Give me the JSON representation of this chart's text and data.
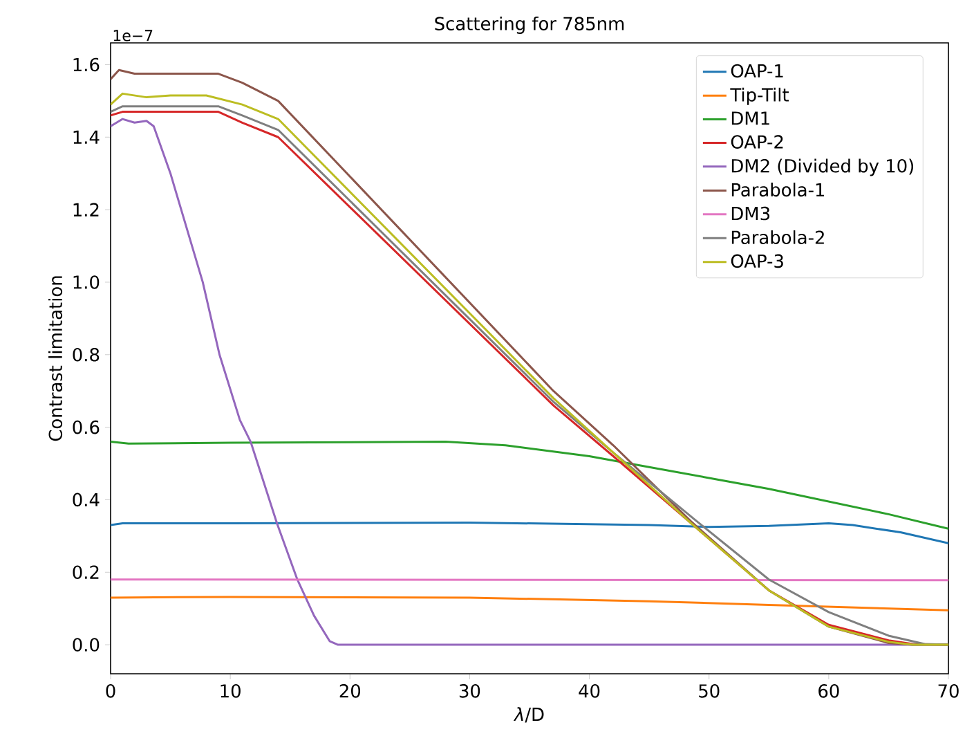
{
  "chart_data": {
    "type": "line",
    "title": "Scattering for 785nm",
    "xlabel": "*λ*/D",
    "ylabel": "Contrast limitation",
    "annotations": [
      "1e−7"
    ],
    "xlim": [
      0,
      70
    ],
    "ylim": [
      -0.08,
      1.66
    ],
    "xticks": [
      0,
      10,
      20,
      30,
      40,
      50,
      60,
      70
    ],
    "yticks": [
      {
        "value": 0,
        "label": "0.0"
      },
      {
        "value": 0.2,
        "label": "0.2"
      },
      {
        "value": 0.4,
        "label": "0.4"
      },
      {
        "value": 0.6,
        "label": "0.6"
      },
      {
        "value": 0.8,
        "label": "0.8"
      },
      {
        "value": 1,
        "label": "1.0"
      },
      {
        "value": 1.2,
        "label": "1.2"
      },
      {
        "value": 1.4,
        "label": "1.4"
      },
      {
        "value": 1.6,
        "label": "1.6"
      }
    ],
    "legend": "top right",
    "grid": false,
    "series": [
      {
        "name": "OAP-1",
        "color": "#1f77b4",
        "x": [
          0,
          1,
          10,
          30,
          45,
          50,
          55,
          60,
          62,
          66,
          70
        ],
        "values": [
          0.33,
          0.335,
          0.335,
          0.337,
          0.33,
          0.325,
          0.328,
          0.335,
          0.33,
          0.31,
          0.28
        ]
      },
      {
        "name": "Tip-Tilt",
        "color": "#ff7f0e",
        "x": [
          0,
          10,
          30,
          45,
          55,
          70
        ],
        "values": [
          0.13,
          0.132,
          0.13,
          0.12,
          0.11,
          0.095
        ]
      },
      {
        "name": "DM1",
        "color": "#2ca02c",
        "x": [
          0,
          1.5,
          10,
          28,
          33,
          40,
          45,
          50,
          55,
          60,
          65,
          70
        ],
        "values": [
          0.56,
          0.555,
          0.557,
          0.56,
          0.55,
          0.52,
          0.49,
          0.46,
          0.43,
          0.395,
          0.36,
          0.32
        ]
      },
      {
        "name": "OAP-2",
        "color": "#d62728",
        "x": [
          0,
          1,
          9,
          11,
          14,
          37,
          42,
          48.5,
          55,
          60,
          65,
          67,
          70
        ],
        "values": [
          1.46,
          1.47,
          1.47,
          1.44,
          1.4,
          0.66,
          0.52,
          0.335,
          0.15,
          0.055,
          0.012,
          0.002,
          0
        ]
      },
      {
        "name": "DM2 (Divided by 10)",
        "color": "#9467bd",
        "x": [
          0,
          1,
          2,
          3,
          3.6,
          5,
          7.7,
          9.1,
          10.8,
          11.7,
          13.9,
          15.6,
          17,
          18.3,
          19,
          70
        ],
        "values": [
          1.43,
          1.45,
          1.44,
          1.445,
          1.43,
          1.3,
          1.0,
          0.8,
          0.62,
          0.56,
          0.335,
          0.18,
          0.08,
          0.01,
          0,
          0
        ]
      },
      {
        "name": "Parabola-1",
        "color": "#8c564b",
        "x": [
          0,
          0.7,
          2,
          9,
          11,
          14,
          37,
          42,
          48.5,
          55,
          60,
          65,
          67,
          70
        ],
        "values": [
          1.56,
          1.585,
          1.575,
          1.575,
          1.55,
          1.5,
          0.7,
          0.55,
          0.34,
          0.15,
          0.05,
          0.005,
          0,
          0
        ]
      },
      {
        "name": "DM3",
        "color": "#e377c2",
        "x": [
          0,
          70
        ],
        "values": [
          0.18,
          0.178
        ]
      },
      {
        "name": "Parabola-2",
        "color": "#7f7f7f",
        "x": [
          0,
          1,
          9,
          11,
          14,
          37,
          42,
          49,
          55,
          60,
          65,
          68,
          70
        ],
        "values": [
          1.47,
          1.485,
          1.485,
          1.46,
          1.42,
          0.67,
          0.53,
          0.34,
          0.18,
          0.09,
          0.025,
          0.002,
          0
        ]
      },
      {
        "name": "OAP-3",
        "color": "#bcbd22",
        "x": [
          0,
          1,
          3,
          5,
          8,
          11,
          14,
          37,
          42,
          48.5,
          55,
          60,
          65,
          67,
          70
        ],
        "values": [
          1.49,
          1.52,
          1.51,
          1.515,
          1.515,
          1.49,
          1.45,
          0.68,
          0.53,
          0.335,
          0.15,
          0.05,
          0.008,
          0,
          0
        ]
      }
    ]
  }
}
